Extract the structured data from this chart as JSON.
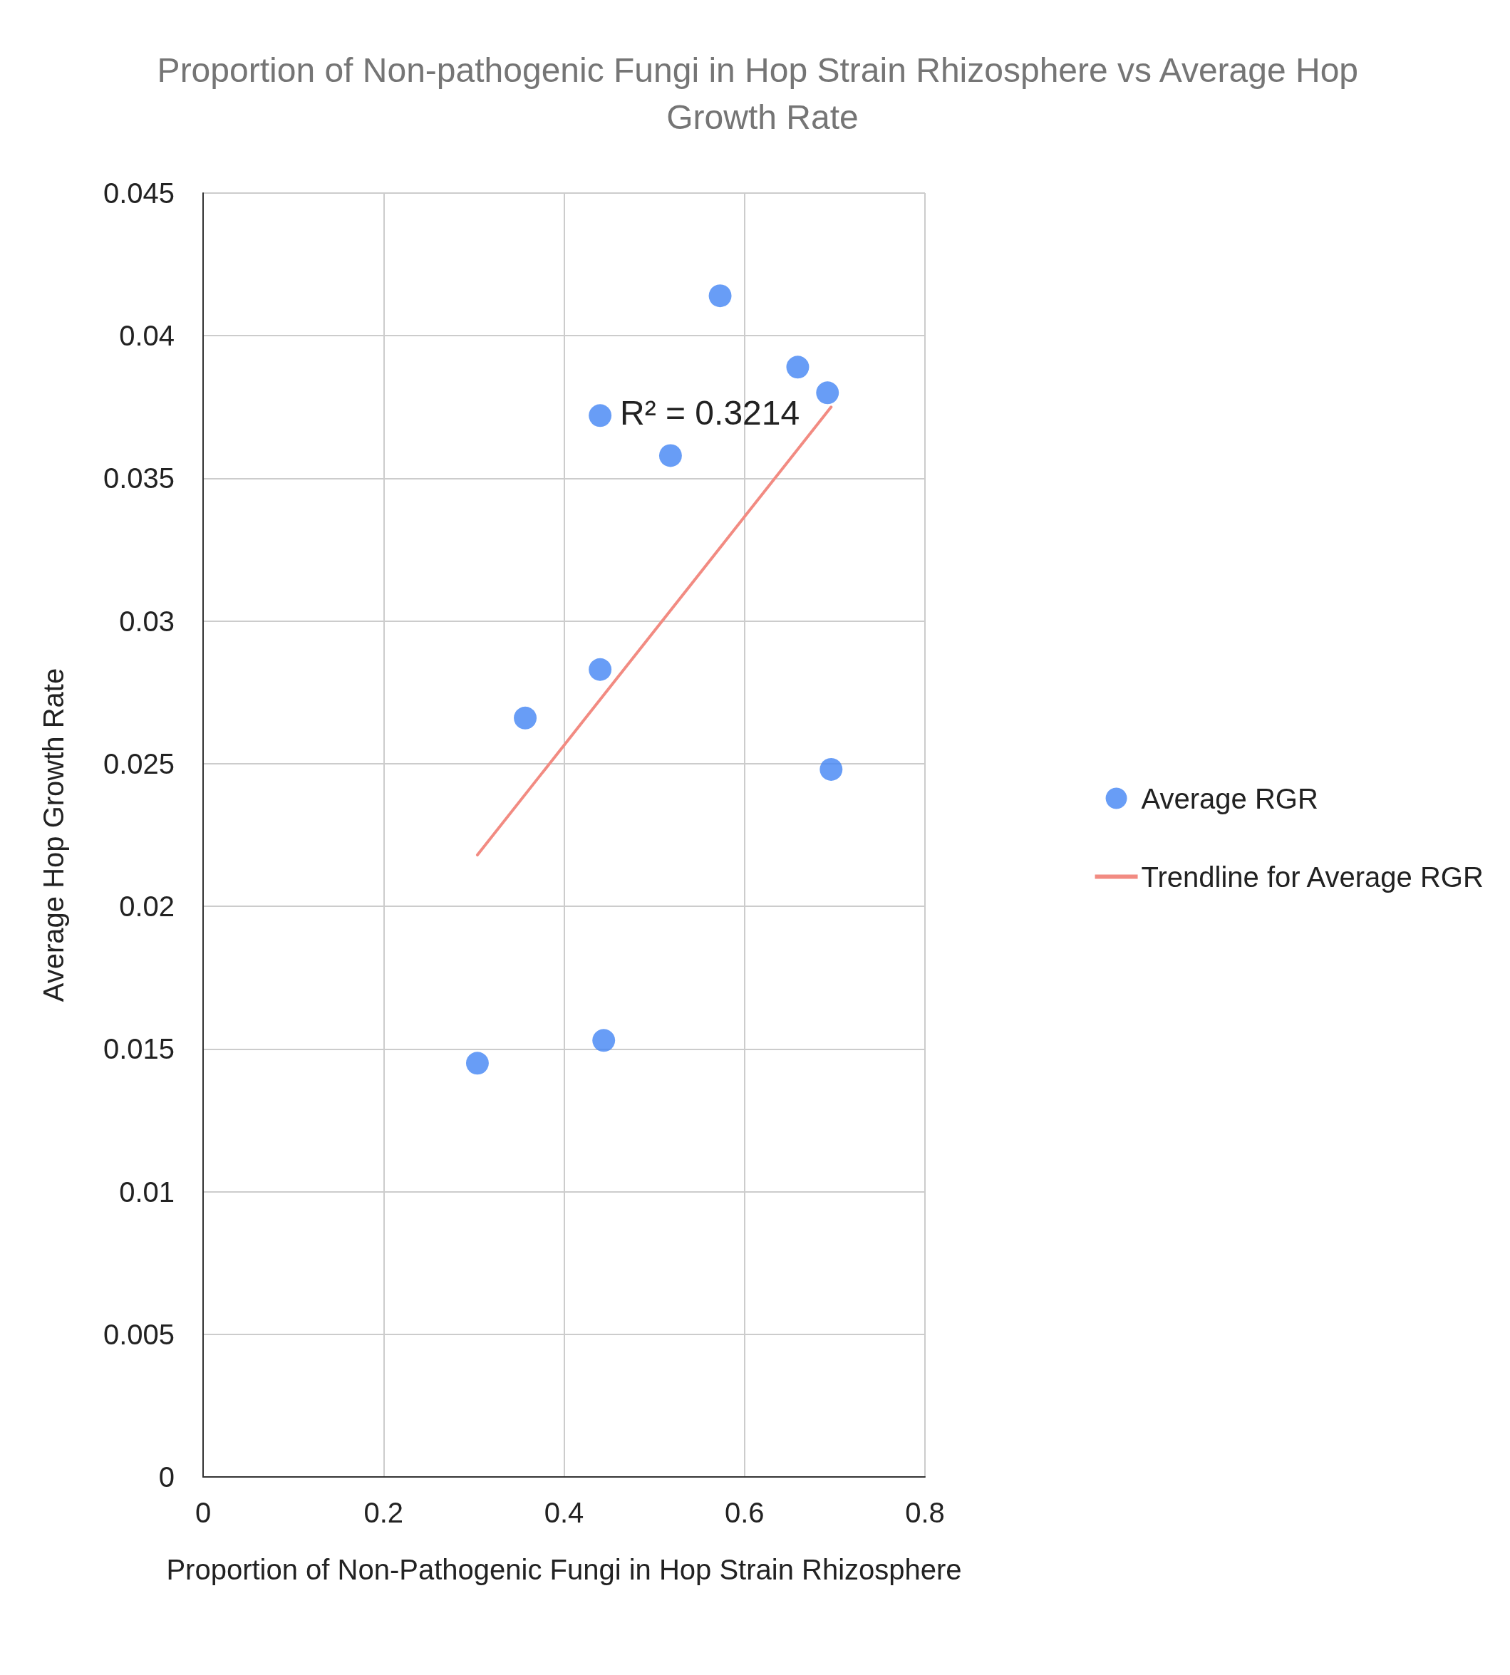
{
  "chart_data": {
    "type": "scatter",
    "title": "Proportion of Non-pathogenic Fungi in Hop Strain Rhizosphere vs Average Hop Growth Rate",
    "xlabel": "Proportion of Non-Pathogenic Fungi in Hop Strain Rhizosphere",
    "ylabel": "Average Hop Growth Rate",
    "series": [
      {
        "name": "Average RGR",
        "color": "#4285f4",
        "marker": "circle",
        "x": [
          0.573,
          0.659,
          0.692,
          0.44,
          0.518,
          0.44,
          0.357,
          0.696,
          0.444,
          0.304
        ],
        "values": [
          0.0414,
          0.0389,
          0.038,
          0.0372,
          0.0358,
          0.0283,
          0.0266,
          0.0248,
          0.0153,
          0.0145
        ]
      },
      {
        "name": "Trendline for Average RGR",
        "type": "line",
        "color": "#f28b82",
        "x": [
          0.304,
          0.696
        ],
        "values": [
          0.0218,
          0.0375
        ]
      }
    ],
    "annotations": [
      "R² = 0.3214"
    ],
    "xlim": [
      0,
      0.8
    ],
    "xticks": [
      0,
      0.2,
      0.4,
      0.6,
      0.8
    ],
    "ylim": [
      0,
      0.045
    ],
    "yticks": [
      0,
      0.005,
      0.01,
      0.015,
      0.02,
      0.025,
      0.03,
      0.035,
      0.04,
      0.045
    ],
    "grid": true,
    "legend": "right"
  }
}
